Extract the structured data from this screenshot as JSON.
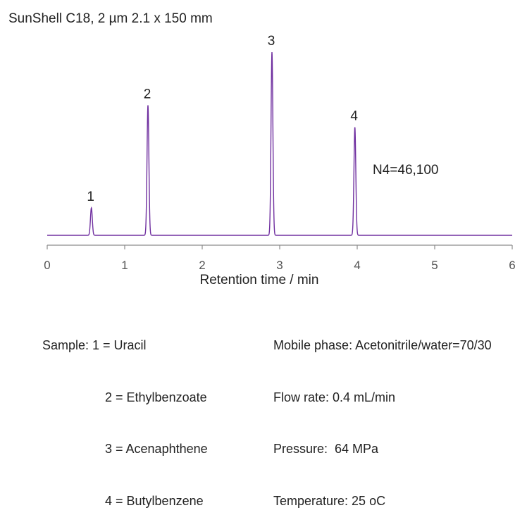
{
  "title": "SunShell C18, 2 µm 2.1 x 150 mm",
  "chart_data": {
    "type": "line",
    "xlabel": "Retention time / min",
    "ylabel": "",
    "xlim": [
      0,
      6
    ],
    "x_ticks": [
      "0",
      "1",
      "2",
      "3",
      "4",
      "5",
      "6"
    ],
    "grid": false,
    "line_color": "#7030a0",
    "peaks": [
      {
        "label": "1",
        "rt": 0.57,
        "height": 0.15
      },
      {
        "label": "2",
        "rt": 1.3,
        "height": 0.71
      },
      {
        "label": "3",
        "rt": 2.9,
        "height": 1.0
      },
      {
        "label": "4",
        "rt": 3.97,
        "height": 0.59
      }
    ],
    "annotation": "N4=46,100"
  },
  "sample": {
    "lines": [
      "Sample: 1 = Uracil",
      "2 = Ethylbenzoate",
      "3 = Acenaphthene",
      "4 = Butylbenzene"
    ]
  },
  "conditions": {
    "lines": [
      "Mobile phase: Acetonitrile/water=70/30",
      "Flow rate: 0.4 mL/min",
      "Pressure:  64 MPa",
      "Temperature: 25 oC"
    ]
  }
}
